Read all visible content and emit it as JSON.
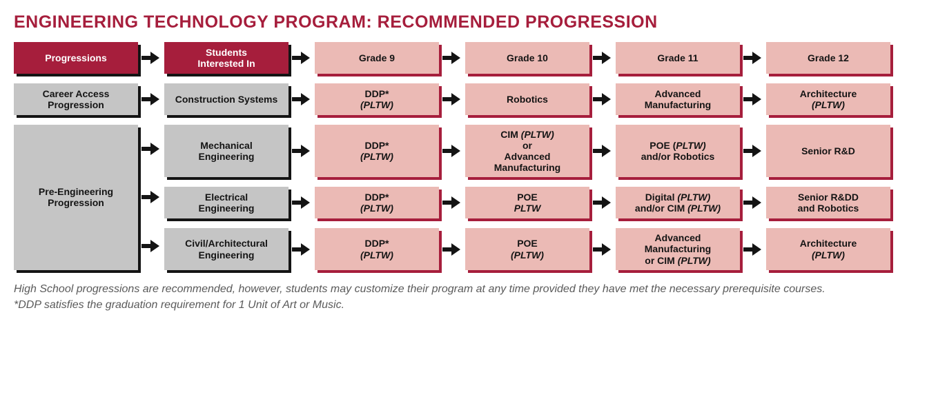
{
  "title": "ENGINEERING TECHNOLOGY PROGRAM: RECOMMENDED PROGRESSION",
  "title_color": "#a61e3c",
  "title_fontsize": "25px",
  "colors": {
    "maroon_bg": "#a61e3c",
    "maroon_text": "#ffffff",
    "gray_bg": "#c5c5c5",
    "gray_text": "#141414",
    "pink_bg": "#ebbab5",
    "pink_text": "#141414",
    "pink_shadow": "#a61e3c",
    "dark_shadow": "#141414",
    "arrow_color": "#141414",
    "footnote_color": "#5a5a5a",
    "background": "#ffffff"
  },
  "cell_fontsize": "14px",
  "footnote_fontsize": "16px",
  "header": {
    "c1": "Progressions",
    "c2_l1": "Students",
    "c2_l2": "Interested In",
    "c3": "Grade 9",
    "c4": "Grade 10",
    "c5": "Grade 11",
    "c6": "Grade 12"
  },
  "row_ca": {
    "c1_l1": "Career Access",
    "c1_l2": "Progression",
    "c2": "Construction Systems",
    "c3_l1": "DDP*",
    "c3_l2": "(PLTW)",
    "c4": "Robotics",
    "c5_l1": "Advanced",
    "c5_l2": "Manufacturing",
    "c6_l1": "Architecture",
    "c6_l2": "(PLTW)"
  },
  "pre_eng_label_l1": "Pre-Engineering",
  "pre_eng_label_l2": "Progression",
  "row_me": {
    "c2_l1": "Mechanical",
    "c2_l2": "Engineering",
    "c3_l1": "DDP*",
    "c3_l2": "(PLTW)",
    "c4_html": "CIM <span class=\"it\">(PLTW)</span><br>or<br>Advanced<br>Manufacturing",
    "c5_html": "POE (<span class=\"it\">PLTW)</span><br>and/or Robotics",
    "c6": "Senior R&D"
  },
  "row_ee": {
    "c2_l1": "Electrical",
    "c2_l2": "Engineering",
    "c3_l1": "DDP*",
    "c3_l2": "(PLTW)",
    "c4_l1": "POE",
    "c4_l2": "PLTW",
    "c5_html": "Digital <span class=\"it\">(PLTW)</span><br>and/or CIM <span class=\"it\">(PLTW)</span>",
    "c6_l1": "Senior R&DD",
    "c6_l2": "and Robotics"
  },
  "row_ce": {
    "c2_l1": "Civil/Architectural",
    "c2_l2": "Engineering",
    "c3_l1": "DDP*",
    "c3_l2": "(PLTW)",
    "c4_l1": "POE",
    "c4_l2": "(PLTW)",
    "c5_html": "Advanced<br>Manufacturing<br>or CIM <span class=\"it\">(PLTW)</span>",
    "c6_l1": "Architecture",
    "c6_l2": "(PLTW)"
  },
  "footnote_l1": "High School progressions are recommended, however, students may customize their program at any time provided they have met the necessary prerequisite courses.",
  "footnote_l2": "*DDP satisfies the graduation requirement for 1 Unit of Art or Music."
}
